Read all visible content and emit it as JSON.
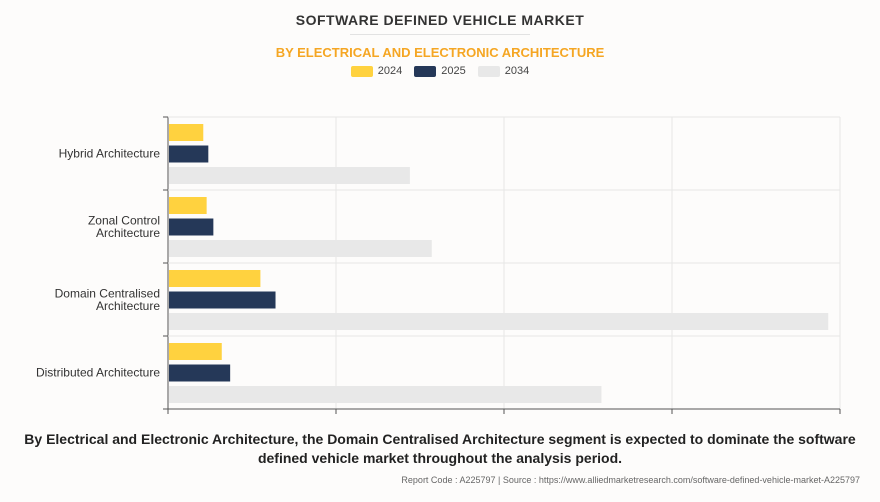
{
  "chart_data": {
    "type": "bar",
    "orientation": "horizontal",
    "title": "SOFTWARE DEFINED VEHICLE MARKET",
    "subtitle": "BY ELECTRICAL AND ELECTRONIC ARCHITECTURE",
    "categories": [
      [
        "Hybrid Architecture"
      ],
      [
        "Zonal Control",
        "Architecture"
      ],
      [
        "Domain Centralised",
        "Architecture"
      ],
      [
        "Distributed Architecture"
      ]
    ],
    "series": [
      {
        "name": "2024",
        "color": "#ffd23f",
        "values": [
          0.21,
          0.23,
          0.55,
          0.32
        ]
      },
      {
        "name": "2025",
        "color": "#253858",
        "values": [
          0.24,
          0.27,
          0.64,
          0.37
        ]
      },
      {
        "name": "2034",
        "color": "#e8e8e8",
        "values": [
          1.44,
          1.57,
          3.93,
          2.58
        ]
      }
    ],
    "xlim": [
      0,
      4
    ],
    "grid": true,
    "legend": "top-center",
    "xlabel": "",
    "ylabel": ""
  },
  "caption": "By Electrical and Electronic Architecture, the Domain Centralised Architecture segment is expected to dominate the software defined vehicle market throughout the analysis period.",
  "source": "Report Code : A225797  |  Source : https://www.alliedmarketresearch.com/software-defined-vehicle-market-A225797"
}
